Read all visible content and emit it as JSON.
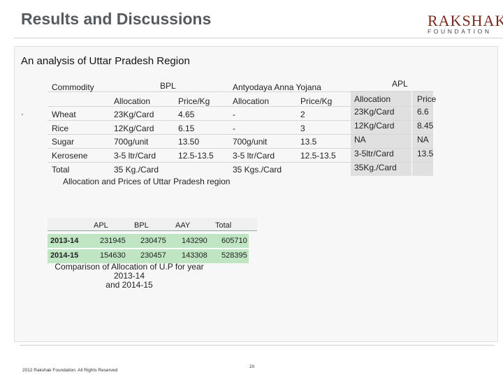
{
  "slide": {
    "title": "Results and Discussions",
    "subtitle": "An analysis of Uttar Pradesh Region",
    "page_number": "20",
    "copyright": "2012 Rakshak Foundation. All Rights Reserved"
  },
  "logo": {
    "word": "RAKSHAK",
    "sub": "FOUNDATION",
    "color": "#7a2a1c"
  },
  "table1": {
    "header": {
      "commodity": "Commodity",
      "bpl": "BPL",
      "aay": "Antyodaya Anna Yojana",
      "apl": "APL"
    },
    "subheader": [
      "Allocation",
      "Price/Kg",
      "Allocation",
      "Price/Kg",
      "Allocation",
      "Price"
    ],
    "rows": [
      [
        "Wheat",
        "23Kg/Card",
        "4.65",
        "-",
        "2",
        "23Kg/Card",
        "6.6"
      ],
      [
        "Rice",
        "12Kg/Card",
        "6.15",
        "-",
        "3",
        "12Kg/Card",
        "8.45"
      ],
      [
        "Sugar",
        "700g/unit",
        "13.50",
        "700g/unit",
        "13.5",
        "NA",
        "NA"
      ],
      [
        "Kerosene",
        "3-5 ltr/Card",
        "12.5-13.5",
        "3-5 ltr/Card",
        "12.5-13.5",
        "3-5ltr/Card",
        "13.5"
      ],
      [
        "Total",
        "35 Kg./Card",
        "",
        "35 Kgs./Card",
        "",
        "35Kg./Card",
        ""
      ]
    ],
    "caption": "Allocation and Prices of Uttar Pradesh region"
  },
  "table2": {
    "header": [
      "APL",
      "BPL",
      "AAY",
      "Total"
    ],
    "rows": [
      [
        "2013-14",
        "231945",
        "230475",
        "143290",
        "605710"
      ],
      [
        "2014-15",
        "154630",
        "230457",
        "143308",
        "528395"
      ]
    ],
    "caption_line1": "Comparison of Allocation of U.P for year 2013-14",
    "caption_line2": "and 2014-15"
  },
  "bullet": "·"
}
